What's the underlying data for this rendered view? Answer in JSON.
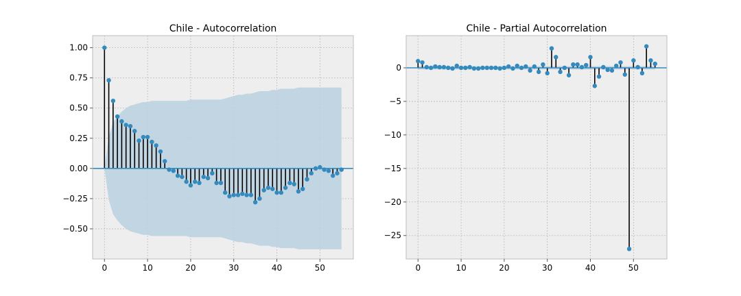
{
  "chart_data": [
    {
      "type": "stem",
      "title": "Chile - Autocorrelation",
      "xlabel": "",
      "ylabel": "",
      "xlim": [
        -2.75,
        57.75
      ],
      "ylim": [
        -0.75,
        1.1
      ],
      "xticks": [
        0,
        10,
        20,
        30,
        40,
        50
      ],
      "yticks": [
        -0.5,
        -0.25,
        0.0,
        0.25,
        0.5,
        0.75,
        1.0
      ],
      "ytick_labels": [
        "−0.50",
        "−0.25",
        "0.00",
        "0.25",
        "0.50",
        "0.75",
        "1.00"
      ],
      "xtick_labels": [
        "0",
        "10",
        "20",
        "30",
        "40",
        "50"
      ],
      "grid": true,
      "lags": [
        0,
        1,
        2,
        3,
        4,
        5,
        6,
        7,
        8,
        9,
        10,
        11,
        12,
        13,
        14,
        15,
        16,
        17,
        18,
        19,
        20,
        21,
        22,
        23,
        24,
        25,
        26,
        27,
        28,
        29,
        30,
        31,
        32,
        33,
        34,
        35,
        36,
        37,
        38,
        39,
        40,
        41,
        42,
        43,
        44,
        45,
        46,
        47,
        48,
        49,
        50,
        51,
        52,
        53,
        54,
        55
      ],
      "values": [
        1.0,
        0.73,
        0.56,
        0.43,
        0.39,
        0.36,
        0.35,
        0.31,
        0.23,
        0.26,
        0.26,
        0.22,
        0.19,
        0.14,
        0.06,
        -0.01,
        -0.02,
        -0.06,
        -0.07,
        -0.11,
        -0.14,
        -0.11,
        -0.12,
        -0.07,
        -0.08,
        -0.04,
        -0.12,
        -0.12,
        -0.2,
        -0.23,
        -0.22,
        -0.22,
        -0.21,
        -0.22,
        -0.22,
        -0.28,
        -0.25,
        -0.18,
        -0.16,
        -0.17,
        -0.2,
        -0.2,
        -0.16,
        -0.12,
        -0.13,
        -0.19,
        -0.17,
        -0.09,
        -0.04,
        0.0,
        0.01,
        -0.01,
        -0.02,
        -0.06,
        -0.04,
        -0.01
      ],
      "confidence_band_upper": [
        0.0,
        0.26,
        0.38,
        0.43,
        0.47,
        0.5,
        0.52,
        0.53,
        0.54,
        0.55,
        0.55,
        0.56,
        0.56,
        0.56,
        0.56,
        0.56,
        0.56,
        0.56,
        0.56,
        0.56,
        0.57,
        0.57,
        0.57,
        0.57,
        0.57,
        0.57,
        0.57,
        0.57,
        0.58,
        0.59,
        0.6,
        0.61,
        0.61,
        0.62,
        0.62,
        0.63,
        0.64,
        0.64,
        0.64,
        0.65,
        0.65,
        0.66,
        0.66,
        0.66,
        0.66,
        0.67,
        0.67,
        0.67,
        0.67,
        0.67,
        0.67,
        0.67,
        0.67,
        0.67,
        0.67,
        0.67
      ],
      "colors": {
        "marker": "#348abd",
        "stem": "#000000",
        "zero_line": "#348abd",
        "band": "#bcd2e0",
        "axes_bg": "#eeeeee",
        "grid": "#bbbbbb"
      }
    },
    {
      "type": "stem",
      "title": "Chile - Partial Autocorrelation",
      "xlabel": "",
      "ylabel": "",
      "xlim": [
        -2.75,
        57.75
      ],
      "ylim": [
        -28.5,
        4.8
      ],
      "xticks": [
        0,
        10,
        20,
        30,
        40,
        50
      ],
      "yticks": [
        -25,
        -20,
        -15,
        -10,
        -5,
        0
      ],
      "ytick_labels": [
        "−25",
        "−20",
        "−15",
        "−10",
        "−5",
        "0"
      ],
      "xtick_labels": [
        "0",
        "10",
        "20",
        "30",
        "40",
        "50"
      ],
      "grid": true,
      "lags": [
        0,
        1,
        2,
        3,
        4,
        5,
        6,
        7,
        8,
        9,
        10,
        11,
        12,
        13,
        14,
        15,
        16,
        17,
        18,
        19,
        20,
        21,
        22,
        23,
        24,
        25,
        26,
        27,
        28,
        29,
        30,
        31,
        32,
        33,
        34,
        35,
        36,
        37,
        38,
        39,
        40,
        41,
        42,
        43,
        44,
        45,
        46,
        47,
        48,
        49,
        50,
        51,
        52,
        53,
        54,
        55
      ],
      "values": [
        1.0,
        0.8,
        0.1,
        0.0,
        0.2,
        0.1,
        0.1,
        0.0,
        -0.1,
        0.3,
        0.0,
        0.0,
        0.1,
        -0.1,
        -0.1,
        0.0,
        0.0,
        0.0,
        0.0,
        -0.1,
        0.0,
        0.2,
        -0.1,
        0.3,
        0.0,
        0.2,
        -0.4,
        0.2,
        -0.6,
        0.5,
        -0.8,
        2.9,
        1.6,
        -0.6,
        0.0,
        -1.1,
        0.5,
        0.5,
        0.1,
        0.4,
        1.6,
        -2.7,
        -1.3,
        0.1,
        -0.3,
        -0.4,
        0.3,
        0.8,
        -1.0,
        -27.0,
        1.1,
        0.1,
        -0.8,
        3.2,
        1.1,
        0.6
      ],
      "confidence_band_upper": [
        0.26,
        0.26,
        0.26,
        0.26,
        0.26,
        0.26,
        0.26,
        0.26,
        0.26,
        0.26,
        0.26,
        0.26,
        0.26,
        0.26,
        0.26,
        0.26,
        0.26,
        0.26,
        0.26,
        0.26,
        0.26,
        0.26,
        0.26,
        0.26,
        0.26,
        0.26,
        0.26,
        0.26,
        0.26,
        0.26,
        0.26,
        0.26,
        0.26,
        0.26,
        0.26,
        0.26,
        0.26,
        0.26,
        0.26,
        0.26,
        0.26,
        0.26,
        0.26,
        0.26,
        0.26,
        0.26,
        0.26,
        0.26,
        0.26,
        0.26,
        0.26,
        0.26,
        0.26,
        0.26,
        0.26,
        0.26
      ],
      "colors": {
        "marker": "#348abd",
        "stem": "#000000",
        "zero_line": "#348abd",
        "band": "#bcd2e0",
        "axes_bg": "#eeeeee",
        "grid": "#bbbbbb"
      }
    }
  ]
}
